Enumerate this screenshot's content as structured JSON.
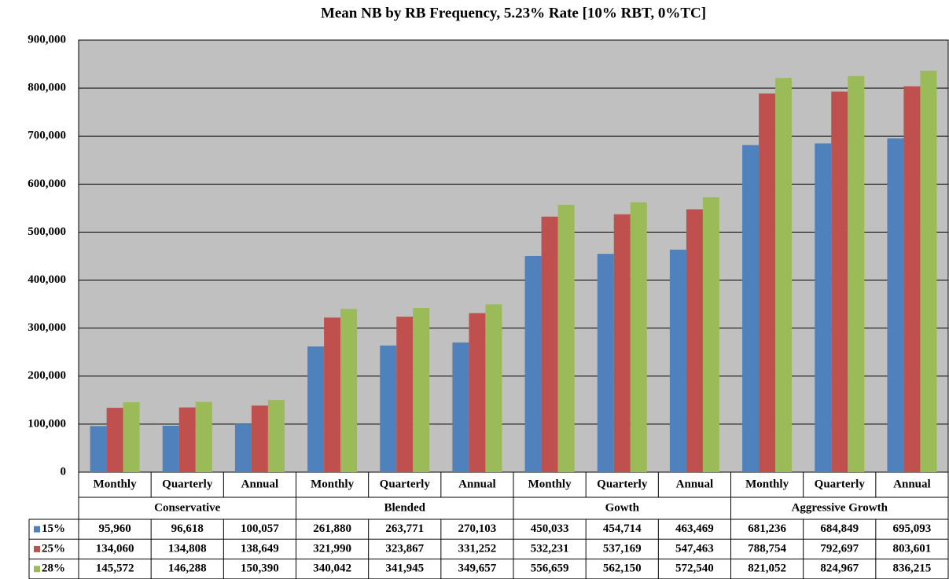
{
  "chart_data": {
    "type": "bar",
    "title": "Mean NB by RB Frequency, 5.23% Rate [10% RBT, 0%TC]",
    "categories": [
      "Monthly",
      "Quarterly",
      "Annual",
      "Monthly",
      "Quarterly",
      "Annual",
      "Monthly",
      "Quarterly",
      "Annual",
      "Monthly",
      "Quarterly",
      "Annual"
    ],
    "group_labels": [
      "Conservative",
      "Blended",
      "Gowth",
      "Aggressive Growth"
    ],
    "series": [
      {
        "name": "15%",
        "color": "#4f81bd",
        "values": [
          95960,
          96618,
          100057,
          261880,
          263771,
          270103,
          450033,
          454714,
          463469,
          681236,
          684849,
          695093
        ],
        "value_labels": [
          "95,960",
          "96,618",
          "100,057",
          "261,880",
          "263,771",
          "270,103",
          "450,033",
          "454,714",
          "463,469",
          "681,236",
          "684,849",
          "695,093"
        ]
      },
      {
        "name": "25%",
        "color": "#c0504d",
        "values": [
          134060,
          134808,
          138649,
          321990,
          323867,
          331252,
          532231,
          537169,
          547463,
          788754,
          792697,
          803601
        ],
        "value_labels": [
          "134,060",
          "134,808",
          "138,649",
          "321,990",
          "323,867",
          "331,252",
          "532,231",
          "537,169",
          "547,463",
          "788,754",
          "792,697",
          "803,601"
        ]
      },
      {
        "name": "28%",
        "color": "#9bbb59",
        "values": [
          145572,
          146288,
          150390,
          340042,
          341945,
          349657,
          556659,
          562150,
          572540,
          821052,
          824967,
          836215
        ],
        "value_labels": [
          "145,572",
          "146,288",
          "150,390",
          "340,042",
          "341,945",
          "349,657",
          "556,659",
          "562,150",
          "572,540",
          "821,052",
          "824,967",
          "836,215"
        ]
      }
    ],
    "ylim": [
      0,
      900000
    ],
    "yticks": [
      0,
      {
        "value": 100000,
        "label": "100,000"
      },
      {
        "value": 200000,
        "label": "200,000"
      },
      {
        "value": 300000,
        "label": "300,000"
      },
      {
        "value": 400000,
        "label": "400,000"
      },
      {
        "value": 500000,
        "label": "500,000"
      },
      {
        "value": 600000,
        "label": "600,000"
      },
      {
        "value": 700000,
        "label": "700,000"
      },
      {
        "value": 800000,
        "label": "800,000"
      },
      {
        "value": 900000,
        "label": "900,000"
      }
    ],
    "grid": true,
    "plot_background": "#c0c0c0"
  }
}
